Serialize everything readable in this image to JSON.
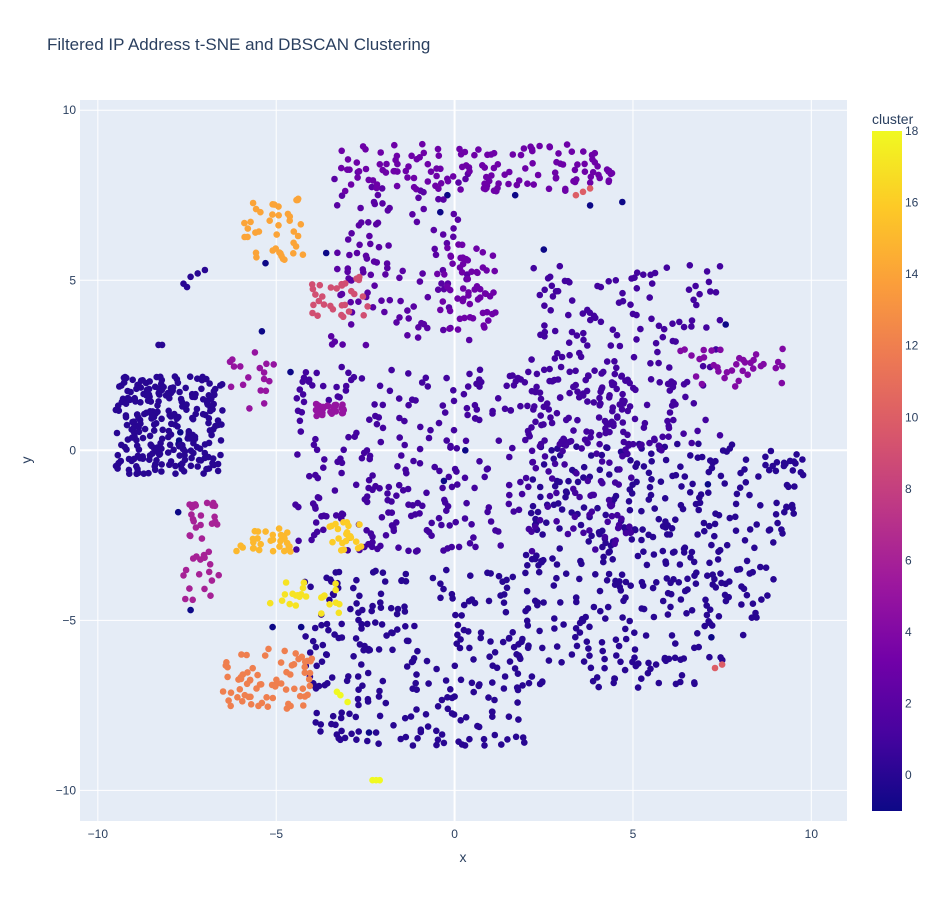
{
  "chart_data": {
    "type": "scatter",
    "title": "Filtered IP Address t-SNE and DBSCAN Clustering",
    "xlabel": "x",
    "ylabel": "y",
    "xlim": [
      -10.5,
      11
    ],
    "ylim": [
      -10.9,
      10.3
    ],
    "xticks": [
      -10,
      -5,
      0,
      5,
      10
    ],
    "yticks": [
      -10,
      -5,
      0,
      5,
      10
    ],
    "xtick_labels": [
      "−10",
      "−5",
      "0",
      "5",
      "10"
    ],
    "ytick_labels": [
      "−10",
      "−5",
      "0",
      "5",
      "10"
    ],
    "grid": true,
    "legend": "none",
    "colorbar": {
      "title": "cluster",
      "range": [
        -1,
        18
      ],
      "ticks": [
        0,
        2,
        4,
        6,
        8,
        10,
        12,
        14,
        16,
        18
      ],
      "tick_labels": [
        "0",
        "2",
        "4",
        "6",
        "8",
        "10",
        "12",
        "14",
        "16",
        "18"
      ],
      "colorscale": [
        "#0d0887",
        "#46039f",
        "#7201a8",
        "#9c179e",
        "#bd3786",
        "#d8576b",
        "#ed7953",
        "#fb9f3a",
        "#fdca26",
        "#f0f921"
      ]
    },
    "clusters": [
      {
        "cluster": -1,
        "points": [
          [
            -7.4,
            -4.7
          ],
          [
            -5.3,
            5.5
          ],
          [
            -5.4,
            3.5
          ],
          [
            -4.6,
            2.3
          ],
          [
            -5.1,
            -5.2
          ],
          [
            -3.6,
            5.8
          ],
          [
            -0.2,
            7.5
          ],
          [
            -0.4,
            7.0
          ],
          [
            0.9,
            7.8
          ],
          [
            1.7,
            7.5
          ],
          [
            2.5,
            5.9
          ],
          [
            3.8,
            7.2
          ],
          [
            4.7,
            7.3
          ],
          [
            7.6,
            3.7
          ],
          [
            7.1,
            -1.0
          ],
          [
            7.2,
            -5.5
          ],
          [
            -0.3,
            -0.9
          ],
          [
            0.3,
            0.0
          ],
          [
            -4.3,
            -5.2
          ],
          [
            -3.6,
            -6.0
          ],
          [
            -2.4,
            -8.3
          ]
        ]
      },
      {
        "cluster": -1,
        "blob": [
          -7.8,
          -7.6,
          2,
          -1.9,
          -0.8,
          -1.8,
          -7.1,
          -6.5
        ],
        "n": 6
      },
      {
        "cluster": 0,
        "blob": [
          -9.5,
          -6.5,
          -0.7,
          2.2,
          0,
          0,
          0,
          0
        ],
        "n": 260
      },
      {
        "cluster": 0,
        "points": [
          [
            -7.6,
            4.9
          ],
          [
            -7.4,
            5.1
          ],
          [
            -7.2,
            5.2
          ],
          [
            -7.0,
            5.3
          ],
          [
            -7.5,
            4.8
          ],
          [
            -8.3,
            3.1
          ],
          [
            -8.2,
            3.1
          ]
        ]
      },
      {
        "cluster": 0,
        "blob": [
          2.0,
          9.8,
          -7.0,
          0.2,
          0,
          0,
          0,
          0
        ],
        "n": 430
      },
      {
        "cluster": 0,
        "blob": [
          -4.2,
          2.0,
          -8.7,
          -3.5,
          0,
          0,
          0,
          0
        ],
        "n": 260
      },
      {
        "cluster": 1,
        "blob": [
          -4.5,
          5.0,
          -3.0,
          2.5,
          0,
          0,
          0,
          0
        ],
        "n": 380
      },
      {
        "cluster": 1,
        "blob": [
          2.0,
          7.5,
          0.0,
          5.5,
          0,
          0,
          0,
          0
        ],
        "n": 200
      },
      {
        "cluster": 2,
        "blob": [
          -3.5,
          0.5,
          3.0,
          8.2,
          0,
          0,
          0,
          0
        ],
        "n": 110
      },
      {
        "cluster": 3,
        "blob": [
          -3.2,
          4.5,
          7.6,
          9.0,
          0,
          0,
          0,
          0
        ],
        "n": 140
      },
      {
        "cluster": 3,
        "blob": [
          -0.5,
          1.2,
          3.5,
          6.2,
          0,
          0,
          0,
          0
        ],
        "n": 60
      },
      {
        "cluster": 4,
        "blob": [
          6.3,
          9.2,
          1.8,
          3.0,
          0,
          0,
          0,
          0
        ],
        "n": 35
      },
      {
        "cluster": 5,
        "blob": [
          -3.9,
          -3.1,
          1.0,
          1.4,
          0,
          0,
          0,
          0
        ],
        "n": 30
      },
      {
        "cluster": 5,
        "blob": [
          -6.3,
          -5.0,
          1.2,
          2.9,
          0,
          0,
          0,
          0
        ],
        "n": 18
      },
      {
        "cluster": 6,
        "blob": [
          -7.6,
          -6.6,
          -4.6,
          -1.5,
          0,
          0,
          0,
          0
        ],
        "n": 40
      },
      {
        "cluster": 9,
        "blob": [
          -4.4,
          -2.4,
          3.9,
          5.1,
          0,
          0,
          0,
          0
        ],
        "n": 30
      },
      {
        "cluster": 10,
        "points": [
          [
            3.4,
            7.5
          ],
          [
            3.6,
            7.6
          ],
          [
            3.8,
            7.7
          ],
          [
            7.3,
            -6.4
          ],
          [
            7.5,
            -6.3
          ]
        ]
      },
      {
        "cluster": 12,
        "blob": [
          -6.5,
          -4.0,
          -7.6,
          -5.8,
          0,
          0,
          0,
          0
        ],
        "n": 70
      },
      {
        "cluster": 14,
        "blob": [
          -5.9,
          -4.2,
          5.6,
          7.4,
          0,
          0,
          0,
          0
        ],
        "n": 40
      },
      {
        "cluster": 15,
        "blob": [
          -6.2,
          -4.6,
          -3.0,
          -2.2,
          0,
          0,
          0,
          0
        ],
        "n": 30
      },
      {
        "cluster": 16,
        "blob": [
          -3.6,
          -2.6,
          -3.0,
          -2.1,
          0,
          0,
          0,
          0
        ],
        "n": 22
      },
      {
        "cluster": 17,
        "blob": [
          -5.2,
          -3.2,
          -4.8,
          -3.8,
          0,
          0,
          0,
          0
        ],
        "n": 25
      },
      {
        "cluster": 18,
        "points": [
          [
            -3.3,
            -7.1
          ],
          [
            -3.2,
            -7.2
          ],
          [
            -3.0,
            -7.4
          ],
          [
            -2.3,
            -9.7
          ],
          [
            -2.2,
            -9.7
          ],
          [
            -2.1,
            -9.7
          ]
        ]
      }
    ]
  }
}
